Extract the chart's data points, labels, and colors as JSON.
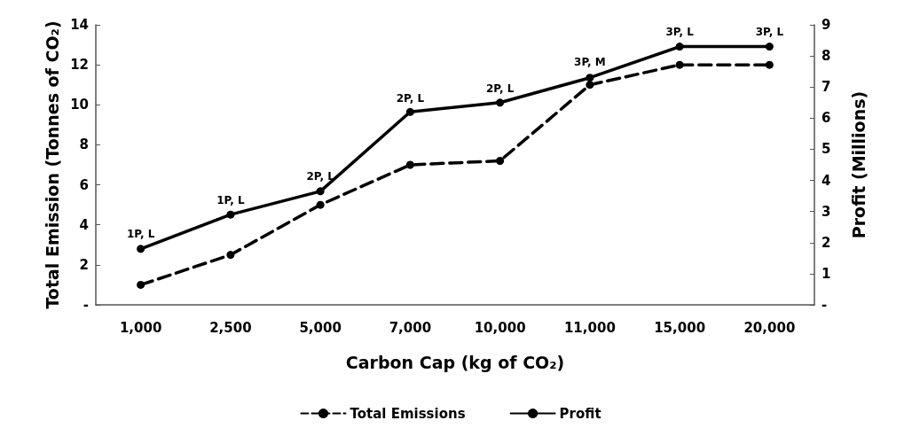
{
  "chart_data": {
    "type": "line",
    "xlabel": "Carbon Cap (kg of CO₂)",
    "ylabel": "Total Emission (Tonnes of CO₂)",
    "y2label": "Profit (Millions)",
    "categories": [
      "1,000",
      "2,500",
      "5,000",
      "7,000",
      "10,000",
      "11,000",
      "15,000",
      "20,000"
    ],
    "series": [
      {
        "name": "Total Emissions",
        "color": "#000000",
        "line_style": "dashed",
        "values": [
          1,
          2.5,
          5,
          7,
          7.2,
          11,
          12,
          12
        ]
      },
      {
        "name": "Profit",
        "color": "#000000",
        "line_style": "solid",
        "axis": "y2",
        "values": [
          1.8,
          2.9,
          3.65,
          6.2,
          6.5,
          7.3,
          8.3,
          8.3
        ]
      }
    ],
    "annotations": [
      {
        "text": "1P, L",
        "x": "1,000",
        "y": 2.8
      },
      {
        "text": "1P, L",
        "x": "2,500",
        "y": 4.5
      },
      {
        "text": "2P, L",
        "x": "5,000",
        "y": 5.7
      },
      {
        "text": "2P, L",
        "x": "7,000",
        "y": 9.6
      },
      {
        "text": "2P, L",
        "x": "10,000",
        "y": 10.1
      },
      {
        "text": "3P, M",
        "x": "11,000",
        "y": 11.4
      },
      {
        "text": "3P, L",
        "x": "15,000",
        "y": 12.9
      },
      {
        "text": "3P, L",
        "x": "20,000",
        "y": 12.9
      }
    ],
    "ylim": [
      0,
      14
    ],
    "yticks": [
      {
        "value": 0,
        "label": "-"
      },
      2,
      4,
      6,
      8,
      10,
      12,
      14
    ],
    "y2lim": [
      0,
      9
    ],
    "y2ticks": [
      {
        "value": 0,
        "label": "-"
      },
      1,
      2,
      3,
      4,
      5,
      6,
      7,
      8,
      9
    ],
    "grid": false,
    "legend": "bottom",
    "marker": "circle"
  }
}
